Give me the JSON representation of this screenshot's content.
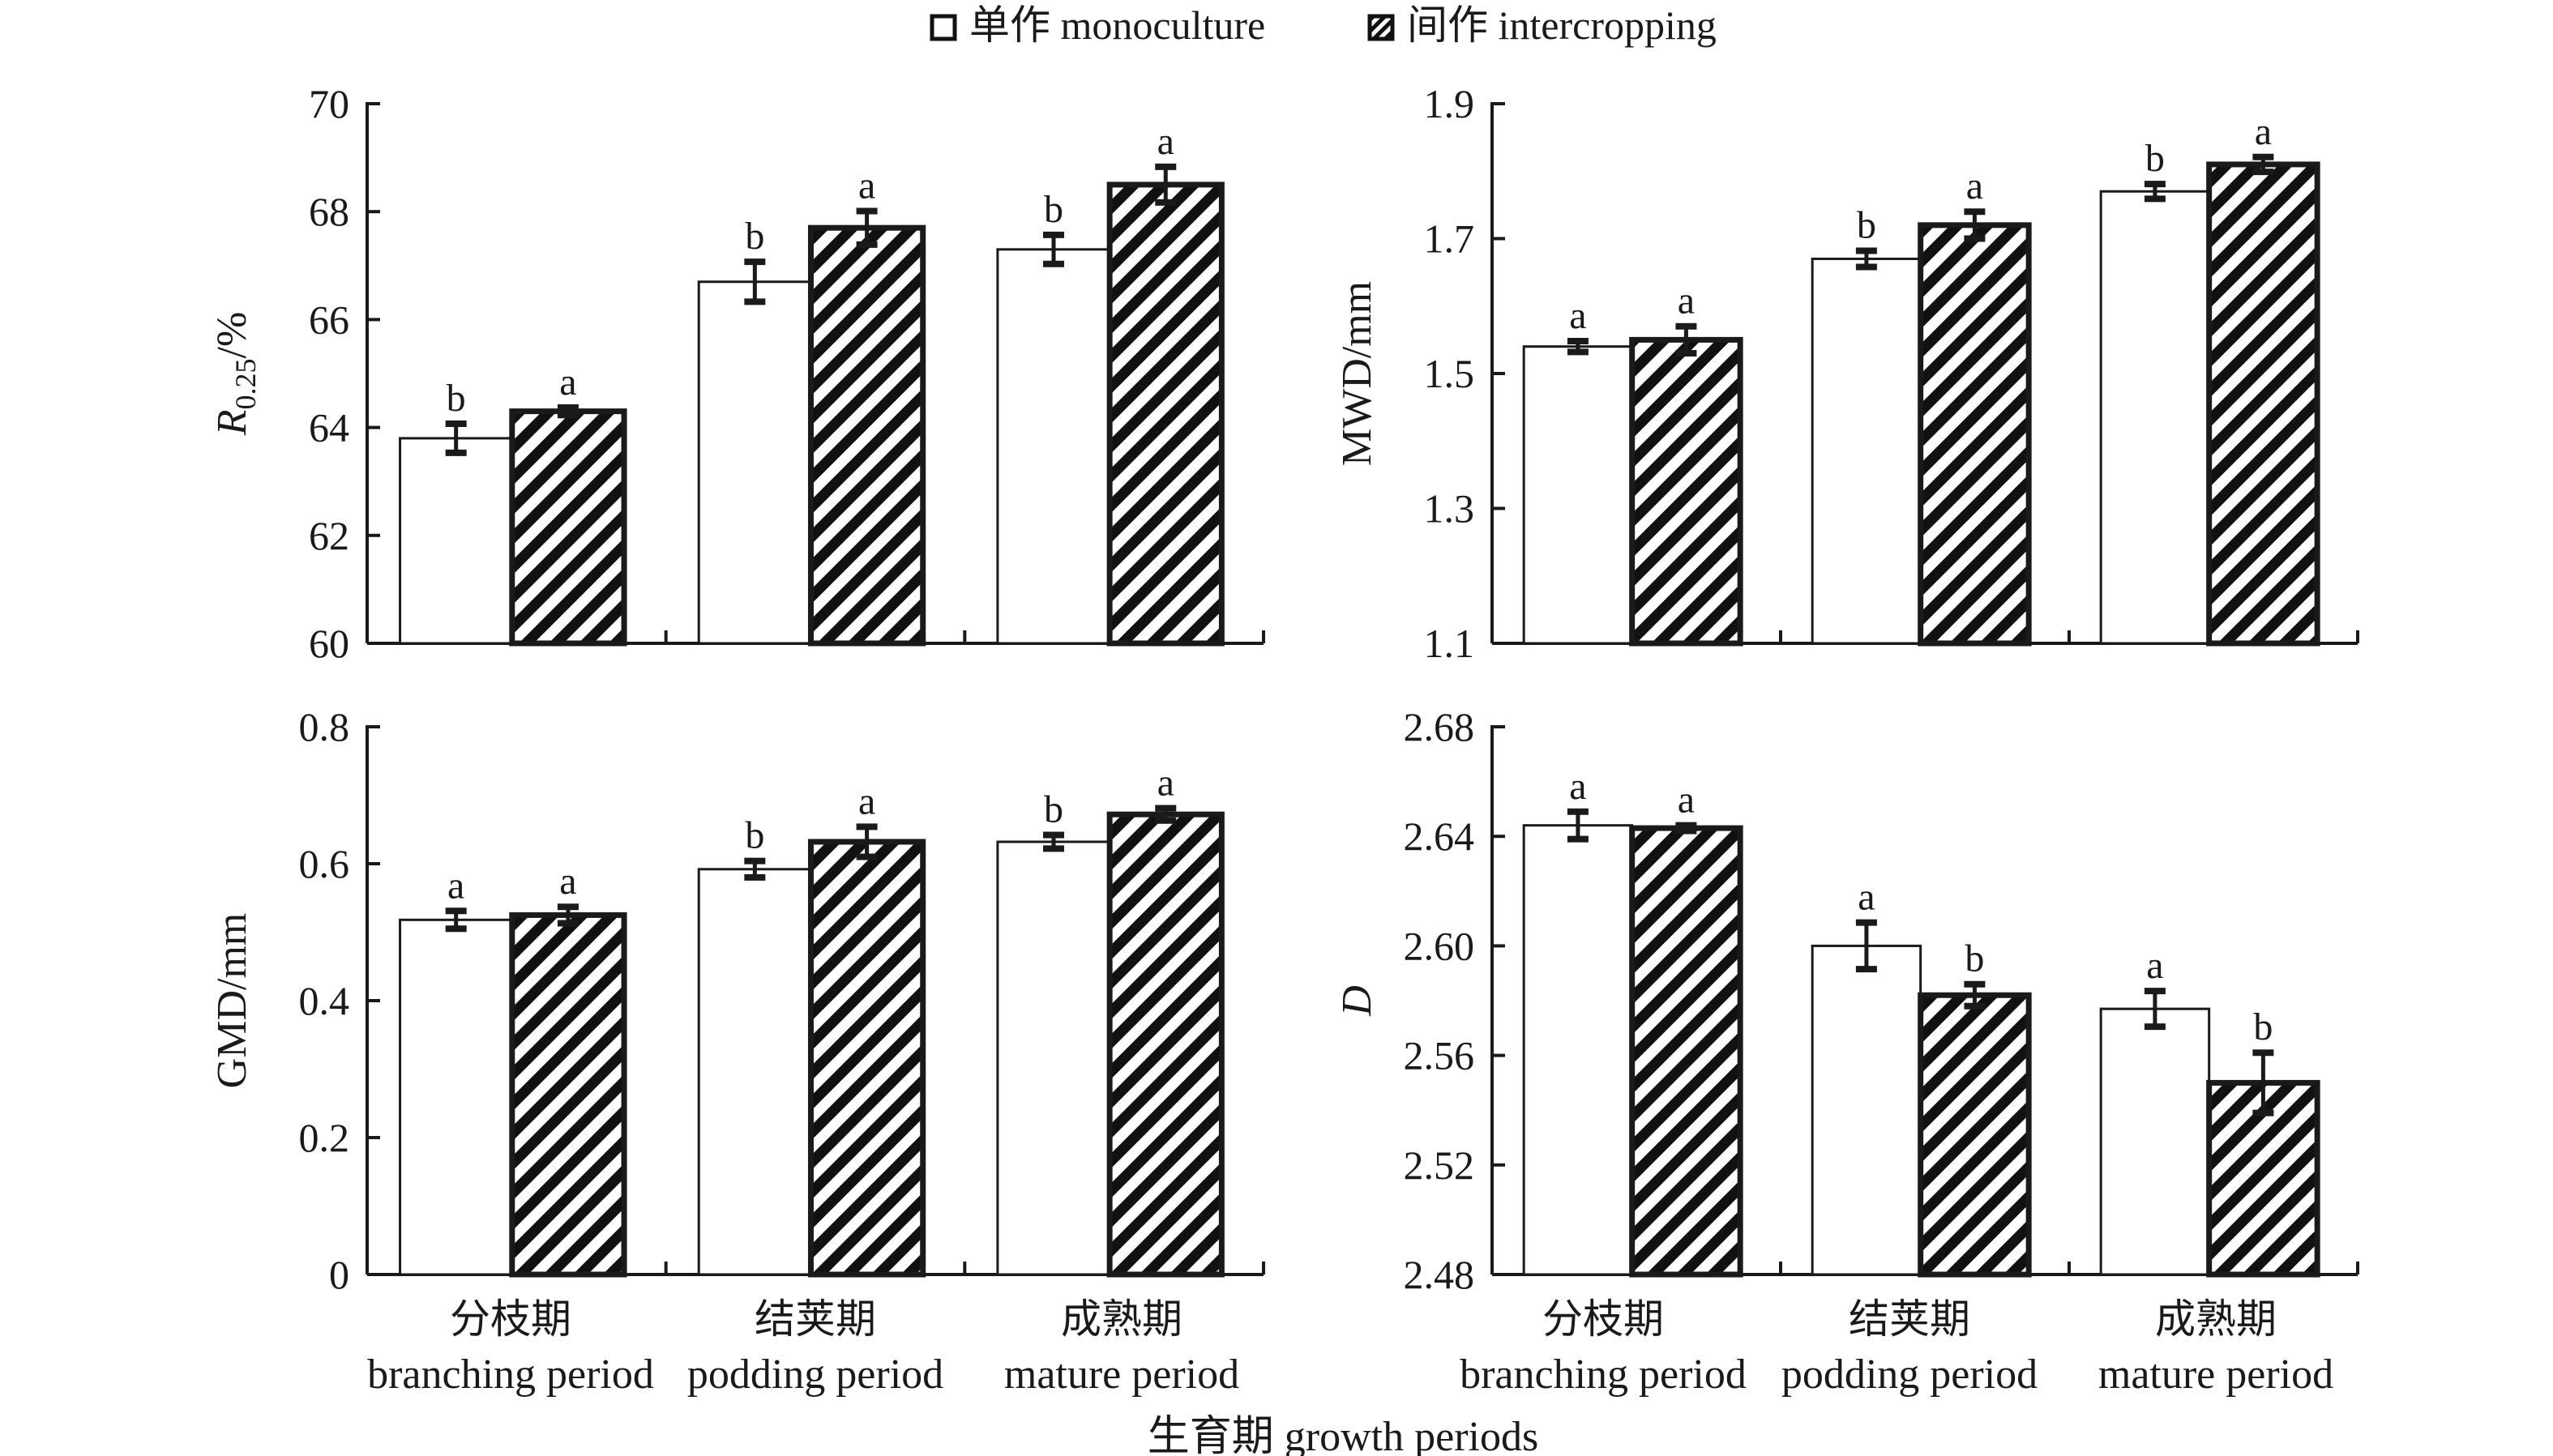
{
  "legend": {
    "items": [
      {
        "name": "单作 monoculture",
        "pattern": "open"
      },
      {
        "name": "间作 intercropping",
        "pattern": "hatched"
      }
    ]
  },
  "shared_xlabel": "生育期 growth periods",
  "categories_cn": [
    "分枝期",
    "结荚期",
    "成熟期"
  ],
  "categories_en": [
    "branching period",
    "podding period",
    "mature period"
  ],
  "chart_data": [
    {
      "type": "bar",
      "panel": "top-left",
      "title": "",
      "ylabel": "R0.25/%",
      "ylabel_main": "R",
      "ylabel_sub": "0.25",
      "ylabel_rest": "/%",
      "ylim": [
        60,
        70
      ],
      "yticks": [
        60,
        62,
        64,
        66,
        68,
        70
      ],
      "ytick_labels": [
        "60",
        "62",
        "64",
        "66",
        "68",
        "70"
      ],
      "categories": [
        "branching period",
        "podding period",
        "mature period"
      ],
      "series": [
        {
          "name": "monoculture",
          "values": [
            63.8,
            66.7,
            67.3
          ],
          "errors": [
            0.27,
            0.37,
            0.27
          ],
          "letters": [
            "b",
            "b",
            "b"
          ]
        },
        {
          "name": "intercropping",
          "values": [
            64.3,
            67.7,
            68.5
          ],
          "errors": [
            0.07,
            0.31,
            0.33
          ],
          "letters": [
            "a",
            "a",
            "a"
          ]
        }
      ],
      "grid": false
    },
    {
      "type": "bar",
      "panel": "top-right",
      "title": "",
      "ylabel": "MWD/mm",
      "ylim": [
        1.1,
        1.9
      ],
      "yticks": [
        1.1,
        1.3,
        1.5,
        1.7,
        1.9
      ],
      "ytick_labels": [
        "1.1",
        "1.3",
        "1.5",
        "1.7",
        "1.9"
      ],
      "categories": [
        "branching period",
        "podding period",
        "mature period"
      ],
      "series": [
        {
          "name": "monoculture",
          "values": [
            1.54,
            1.67,
            1.77
          ],
          "errors": [
            0.008,
            0.012,
            0.011
          ],
          "letters": [
            "a",
            "b",
            "b"
          ]
        },
        {
          "name": "intercropping",
          "values": [
            1.55,
            1.72,
            1.81
          ],
          "errors": [
            0.02,
            0.02,
            0.011
          ],
          "letters": [
            "a",
            "a",
            "a"
          ]
        }
      ],
      "grid": false
    },
    {
      "type": "bar",
      "panel": "bottom-left",
      "title": "",
      "ylabel": "GMD/mm",
      "ylim": [
        0,
        0.8
      ],
      "yticks": [
        0,
        0.2,
        0.4,
        0.6,
        0.8
      ],
      "ytick_labels": [
        "0",
        "0.2",
        "0.4",
        "0.6",
        "0.8"
      ],
      "categories": [
        "branching period",
        "podding period",
        "mature period"
      ],
      "series": [
        {
          "name": "monoculture",
          "values": [
            0.518,
            0.592,
            0.632
          ],
          "errors": [
            0.013,
            0.012,
            0.01
          ],
          "letters": [
            "a",
            "b",
            "b"
          ]
        },
        {
          "name": "intercropping",
          "values": [
            0.525,
            0.632,
            0.672
          ],
          "errors": [
            0.012,
            0.022,
            0.009
          ],
          "letters": [
            "a",
            "a",
            "a"
          ]
        }
      ],
      "grid": false
    },
    {
      "type": "bar",
      "panel": "bottom-right",
      "title": "",
      "ylabel": "D",
      "ylim": [
        2.48,
        2.68
      ],
      "yticks": [
        2.48,
        2.52,
        2.56,
        2.6,
        2.64,
        2.68
      ],
      "ytick_labels": [
        "2.48",
        "2.52",
        "2.56",
        "2.60",
        "2.64",
        "2.68"
      ],
      "categories": [
        "branching period",
        "podding period",
        "mature period"
      ],
      "series": [
        {
          "name": "monoculture",
          "values": [
            2.644,
            2.6,
            2.577
          ],
          "errors": [
            0.005,
            0.0085,
            0.0065
          ],
          "letters": [
            "a",
            "a",
            "a"
          ]
        },
        {
          "name": "intercropping",
          "values": [
            2.643,
            2.582,
            2.55
          ],
          "errors": [
            0.001,
            0.004,
            0.011
          ],
          "letters": [
            "a",
            "b",
            "b"
          ]
        }
      ],
      "grid": false
    }
  ]
}
